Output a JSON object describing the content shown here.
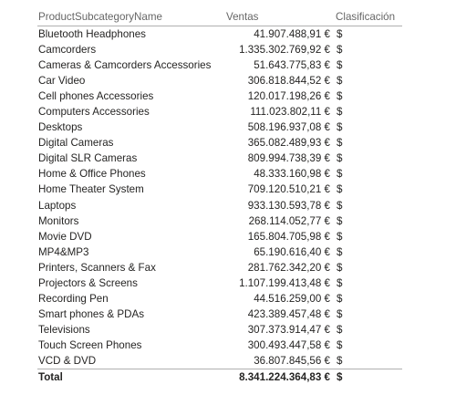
{
  "headers": {
    "name": "ProductSubcategoryName",
    "ventas": "Ventas",
    "clasificacion": "Clasificación"
  },
  "rows": [
    {
      "name": "Bluetooth Headphones",
      "ventas": "41.907.488,91 €",
      "clasificacion": "$"
    },
    {
      "name": "Camcorders",
      "ventas": "1.335.302.769,92 €",
      "clasificacion": "$"
    },
    {
      "name": "Cameras & Camcorders Accessories",
      "ventas": "51.643.775,83 €",
      "clasificacion": "$"
    },
    {
      "name": "Car Video",
      "ventas": "306.818.844,52 €",
      "clasificacion": "$"
    },
    {
      "name": "Cell phones Accessories",
      "ventas": "120.017.198,26 €",
      "clasificacion": "$"
    },
    {
      "name": "Computers Accessories",
      "ventas": "111.023.802,11 €",
      "clasificacion": "$"
    },
    {
      "name": "Desktops",
      "ventas": "508.196.937,08 €",
      "clasificacion": "$"
    },
    {
      "name": "Digital Cameras",
      "ventas": "365.082.489,93 €",
      "clasificacion": "$"
    },
    {
      "name": "Digital SLR Cameras",
      "ventas": "809.994.738,39 €",
      "clasificacion": "$"
    },
    {
      "name": "Home & Office Phones",
      "ventas": "48.333.160,98 €",
      "clasificacion": "$"
    },
    {
      "name": "Home Theater System",
      "ventas": "709.120.510,21 €",
      "clasificacion": "$"
    },
    {
      "name": "Laptops",
      "ventas": "933.130.593,78 €",
      "clasificacion": "$"
    },
    {
      "name": "Monitors",
      "ventas": "268.114.052,77 €",
      "clasificacion": "$"
    },
    {
      "name": "Movie DVD",
      "ventas": "165.804.705,98 €",
      "clasificacion": "$"
    },
    {
      "name": "MP4&MP3",
      "ventas": "65.190.616,40 €",
      "clasificacion": "$"
    },
    {
      "name": "Printers, Scanners & Fax",
      "ventas": "281.762.342,20 €",
      "clasificacion": "$"
    },
    {
      "name": "Projectors & Screens",
      "ventas": "1.107.199.413,48 €",
      "clasificacion": "$"
    },
    {
      "name": "Recording Pen",
      "ventas": "44.516.259,00 €",
      "clasificacion": "$"
    },
    {
      "name": "Smart phones & PDAs",
      "ventas": "423.389.457,48 €",
      "clasificacion": "$"
    },
    {
      "name": "Televisions",
      "ventas": "307.373.914,47 €",
      "clasificacion": "$"
    },
    {
      "name": "Touch Screen Phones",
      "ventas": "300.493.447,58 €",
      "clasificacion": "$"
    },
    {
      "name": "VCD & DVD",
      "ventas": "36.807.845,56 €",
      "clasificacion": "$"
    }
  ],
  "total": {
    "name": "Total",
    "ventas": "8.341.224.364,83 €",
    "clasificacion": "$"
  }
}
